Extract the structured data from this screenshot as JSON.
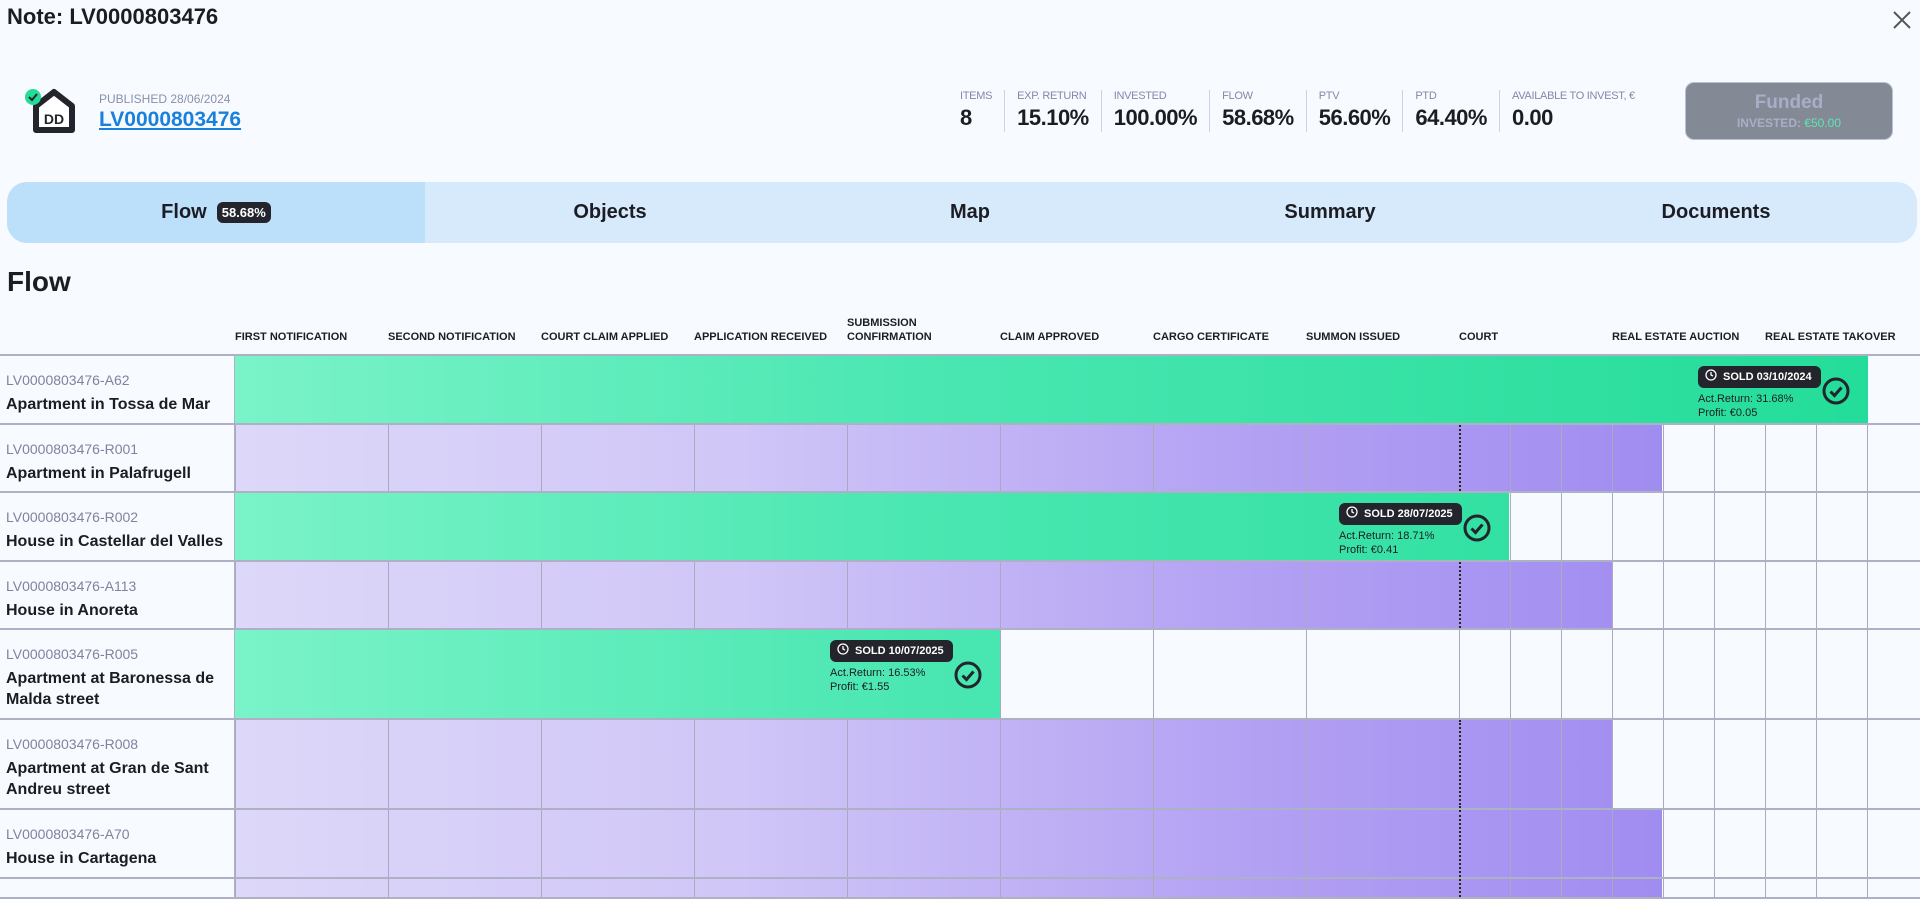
{
  "header": {
    "title": "Note: LV0000803476",
    "published": "PUBLISHED 28/06/2024",
    "note_link": "LV0000803476",
    "stats": [
      {
        "label": "ITEMS",
        "value": "8"
      },
      {
        "label": "EXP. RETURN",
        "value": "15.10%"
      },
      {
        "label": "INVESTED",
        "value": "100.00%"
      },
      {
        "label": "FLOW",
        "value": "58.68%"
      },
      {
        "label": "PTV",
        "value": "56.60%"
      },
      {
        "label": "PTD",
        "value": "64.40%"
      },
      {
        "label": "AVAILABLE TO INVEST, €",
        "value": "0.00"
      }
    ],
    "funded": {
      "label": "Funded",
      "invested_label": "INVESTED:",
      "invested_value": "€50.00"
    }
  },
  "tabs": [
    {
      "label": "Flow",
      "badge": "58.68%",
      "active": true
    },
    {
      "label": "Objects"
    },
    {
      "label": "Map"
    },
    {
      "label": "Summary"
    },
    {
      "label": "Documents"
    }
  ],
  "section_title": "Flow",
  "stages": [
    "FIRST NOTIFICATION",
    "SECOND NOTIFICATION",
    "COURT CLAIM APPLIED",
    "APPLICATION RECEIVED",
    "SUBMISSION CONFIRMATION",
    "CLAIM APPROVED",
    "CARGO CERTIFICATE",
    "SUMMON ISSUED",
    "COURT",
    "REAL ESTATE AUCTION",
    "REAL ESTATE TAKOVER"
  ],
  "rows": [
    {
      "id": "LV0000803476-A62",
      "name": "Apartment in Tossa de Mar",
      "status": "sold",
      "progress_stages": 10.67,
      "sold": {
        "date": "SOLD 03/10/2024",
        "act_return": "Act.Return: 31.68%",
        "profit": "Profit: €0.05"
      }
    },
    {
      "id": "LV0000803476-R001",
      "name": "Apartment in Palafrugell",
      "status": "in_progress",
      "progress_stages": 9.33
    },
    {
      "id": "LV0000803476-R002",
      "name": "House in Castellar del Valles",
      "status": "sold",
      "progress_stages": 8.33,
      "sold": {
        "date": "SOLD 28/07/2025",
        "act_return": "Act.Return: 18.71%",
        "profit": "Profit: €0.41"
      }
    },
    {
      "id": "LV0000803476-A113",
      "name": "House in Anoreta",
      "status": "in_progress",
      "progress_stages": 9.0
    },
    {
      "id": "LV0000803476-R005",
      "name": "Apartment at Baronessa de Malda street",
      "status": "sold",
      "progress_stages": 5.0,
      "sold": {
        "date": "SOLD 10/07/2025",
        "act_return": "Act.Return: 16.53%",
        "profit": "Profit: €1.55"
      }
    },
    {
      "id": "LV0000803476-R008",
      "name": "Apartment at Gran de Sant Andreu street",
      "status": "in_progress",
      "progress_stages": 9.0
    },
    {
      "id": "LV0000803476-A70",
      "name": "House in Cartagena",
      "status": "in_progress",
      "progress_stages": 9.33
    },
    {
      "status": "in_progress",
      "progress_stages": 9.33
    }
  ],
  "colors": {
    "link": "#1a80dc",
    "sold_green": "#22dc98",
    "progress_purple": "#9580ef",
    "tab_active": "#bcdffa",
    "tabs_bg": "#d7eafc"
  }
}
